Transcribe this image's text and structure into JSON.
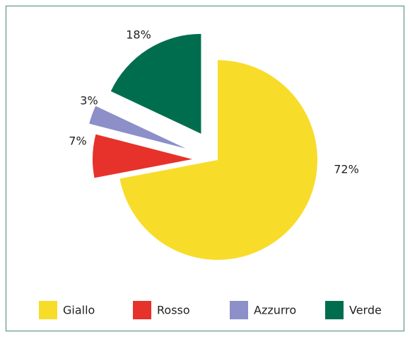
{
  "chart_data": {
    "type": "pie",
    "categories": [
      "Giallo",
      "Rosso",
      "Azzurro",
      "Verde"
    ],
    "values": [
      72,
      7,
      3,
      18
    ],
    "value_labels": [
      "72%",
      "7%",
      "3%",
      "18%"
    ],
    "colors": [
      "#f8dc2a",
      "#e6322b",
      "#8c8fc8",
      "#006e4e"
    ],
    "legend": "bottom"
  }
}
